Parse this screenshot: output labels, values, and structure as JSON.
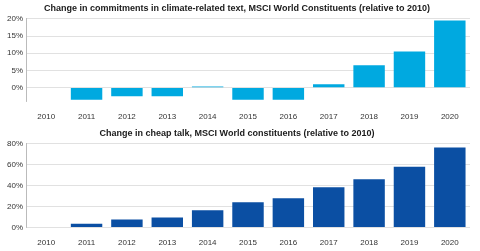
{
  "chart_data": [
    {
      "type": "bar",
      "title": "Change in commitments in climate-related text, MSCI World Constituents (relative to 2010)",
      "categories": [
        "2010",
        "2011",
        "2012",
        "2013",
        "2014",
        "2015",
        "2016",
        "2017",
        "2018",
        "2019",
        "2020"
      ],
      "values": [
        0,
        -3.5,
        -2.5,
        -2.5,
        0.3,
        -3.5,
        -3.5,
        1,
        6.5,
        10.5,
        19.5
      ],
      "color": "#00a9e0",
      "ylim": [
        -4,
        20
      ],
      "yticks": [
        {
          "value": 0,
          "label": "0%"
        },
        {
          "value": 5,
          "label": "5%"
        },
        {
          "value": 10,
          "label": "10%"
        },
        {
          "value": 15,
          "label": "15%"
        },
        {
          "value": 20,
          "label": "20%"
        }
      ],
      "grid": true
    },
    {
      "type": "bar",
      "title": "Change in cheap talk, MSCI World constituents (relative to 2010)",
      "categories": [
        "2010",
        "2011",
        "2012",
        "2013",
        "2014",
        "2015",
        "2016",
        "2017",
        "2018",
        "2019",
        "2020"
      ],
      "values": [
        0,
        3.5,
        7.5,
        9.5,
        16.5,
        24,
        28,
        38.5,
        46,
        58,
        76.5
      ],
      "color": "#0b4fa3",
      "ylim": [
        0,
        80
      ],
      "yticks": [
        {
          "value": 0,
          "label": "0%"
        },
        {
          "value": 20,
          "label": "20%"
        },
        {
          "value": 40,
          "label": "40%"
        },
        {
          "value": 60,
          "label": "60%"
        },
        {
          "value": 80,
          "label": "80%"
        }
      ],
      "grid": true
    }
  ]
}
